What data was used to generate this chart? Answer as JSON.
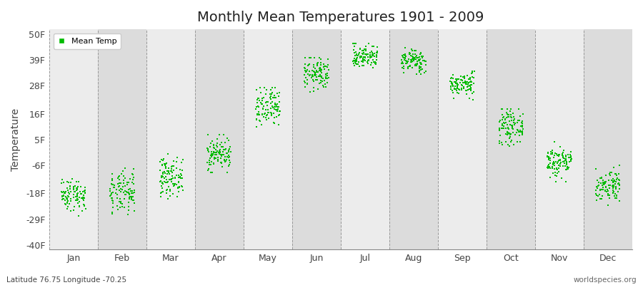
{
  "title": "Monthly Mean Temperatures 1901 - 2009",
  "ylabel": "Temperature",
  "yticks": [
    -40,
    -29,
    -18,
    -6,
    5,
    16,
    28,
    39,
    50
  ],
  "ytick_labels": [
    "-40F",
    "-29F",
    "-18F",
    "-6F",
    "5F",
    "16F",
    "28F",
    "39F",
    "50F"
  ],
  "ylim": [
    -42,
    52
  ],
  "months": [
    "Jan",
    "Feb",
    "Mar",
    "Apr",
    "May",
    "Jun",
    "Jul",
    "Aug",
    "Sep",
    "Oct",
    "Nov",
    "Dec"
  ],
  "month_means_F": [
    -18.5,
    -18.0,
    -11.0,
    -1.0,
    18.0,
    33.0,
    40.5,
    38.5,
    28.5,
    10.5,
    -4.5,
    -14.5
  ],
  "month_stds_F": [
    3.5,
    4.5,
    4.0,
    3.5,
    4.5,
    3.5,
    2.5,
    2.5,
    2.5,
    3.5,
    3.5,
    3.5
  ],
  "month_mins_F": [
    -28,
    -32,
    -21,
    -9,
    7,
    25,
    34,
    32,
    22,
    1,
    -13,
    -23
  ],
  "month_maxs_F": [
    -9,
    -7,
    -1,
    7,
    27,
    40,
    46,
    44,
    34,
    18,
    4,
    -6
  ],
  "n_years": 109,
  "dot_color": "#00bb00",
  "dot_size": 2,
  "plot_bg_light": "#ececec",
  "plot_bg_dark": "#dcdcdc",
  "legend_label": "Mean Temp",
  "footer_left": "Latitude 76.75 Longitude -70.25",
  "footer_right": "worldspecies.org",
  "seed": 42
}
